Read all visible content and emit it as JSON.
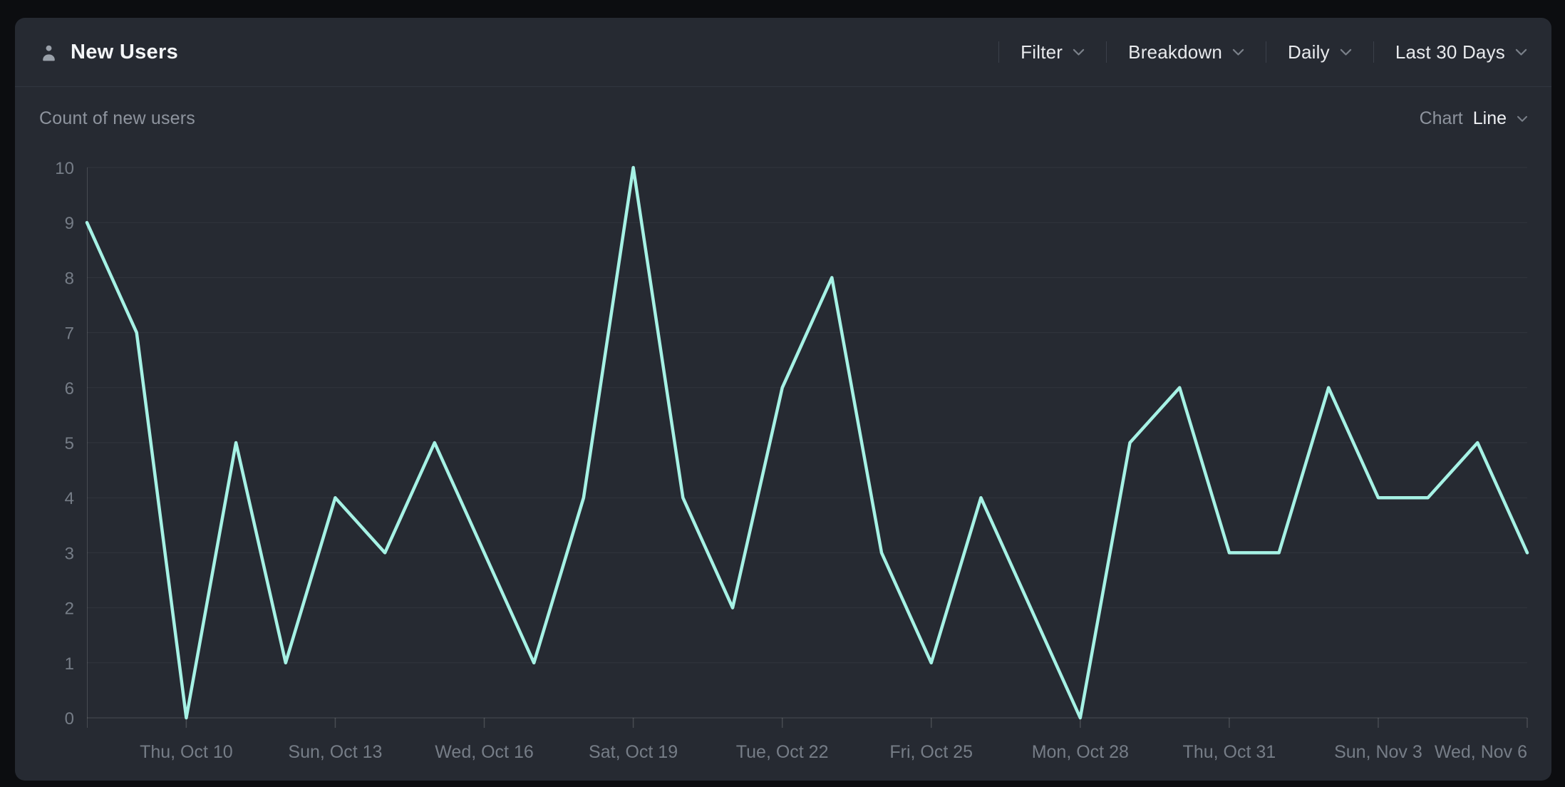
{
  "header": {
    "title": "New Users",
    "menus": [
      {
        "name": "filter-dropdown",
        "label": "Filter"
      },
      {
        "name": "breakdown-dropdown",
        "label": "Breakdown"
      },
      {
        "name": "granularity-dropdown",
        "label": "Daily"
      },
      {
        "name": "date-range-dropdown",
        "label": "Last 30 Days"
      }
    ]
  },
  "subheader": {
    "metric_label": "Count of new users",
    "chart_label": "Chart",
    "chart_type_value": "Line"
  },
  "colors": {
    "page_bg": "#0c0d10",
    "card_bg": "#262a32",
    "divider": "#30353f",
    "line": "#a6f2e5",
    "grid_line": "rgba(255,255,255,0.055)",
    "axis_line": "rgba(255,255,255,0.16)",
    "axis_label": "#767d87",
    "title_text": "#f3f5f7",
    "muted_text": "#8e949e"
  },
  "chart_data": {
    "type": "line",
    "title": "Count of new users",
    "xlabel": "",
    "ylabel": "",
    "ylim": [
      0,
      10
    ],
    "ytick_step": 1,
    "grid": true,
    "legend": "none",
    "x": [
      "Tue, Oct 8",
      "Wed, Oct 9",
      "Thu, Oct 10",
      "Fri, Oct 11",
      "Sat, Oct 12",
      "Sun, Oct 13",
      "Mon, Oct 14",
      "Tue, Oct 15",
      "Wed, Oct 16",
      "Thu, Oct 17",
      "Fri, Oct 18",
      "Sat, Oct 19",
      "Sun, Oct 20",
      "Mon, Oct 21",
      "Tue, Oct 22",
      "Wed, Oct 23",
      "Thu, Oct 24",
      "Fri, Oct 25",
      "Sat, Oct 26",
      "Sun, Oct 27",
      "Mon, Oct 28",
      "Tue, Oct 29",
      "Wed, Oct 30",
      "Thu, Oct 31",
      "Fri, Nov 1",
      "Sat, Nov 2",
      "Sun, Nov 3",
      "Mon, Nov 4",
      "Tue, Nov 5",
      "Wed, Nov 6"
    ],
    "values": [
      9,
      7,
      0,
      5,
      1,
      4,
      3,
      5,
      3,
      1,
      4,
      10,
      4,
      2,
      6,
      8,
      3,
      1,
      4,
      2,
      0,
      5,
      6,
      3,
      3,
      6,
      4,
      4,
      5,
      3
    ],
    "x_tick_indices": [
      2,
      5,
      8,
      11,
      14,
      17,
      20,
      23,
      26,
      29
    ],
    "x_tick_labels": [
      "Thu, Oct 10",
      "Sun, Oct 13",
      "Wed, Oct 16",
      "Sat, Oct 19",
      "Tue, Oct 22",
      "Fri, Oct 25",
      "Mon, Oct 28",
      "Thu, Oct 31",
      "Sun, Nov 3",
      "Wed, Nov 6"
    ]
  }
}
